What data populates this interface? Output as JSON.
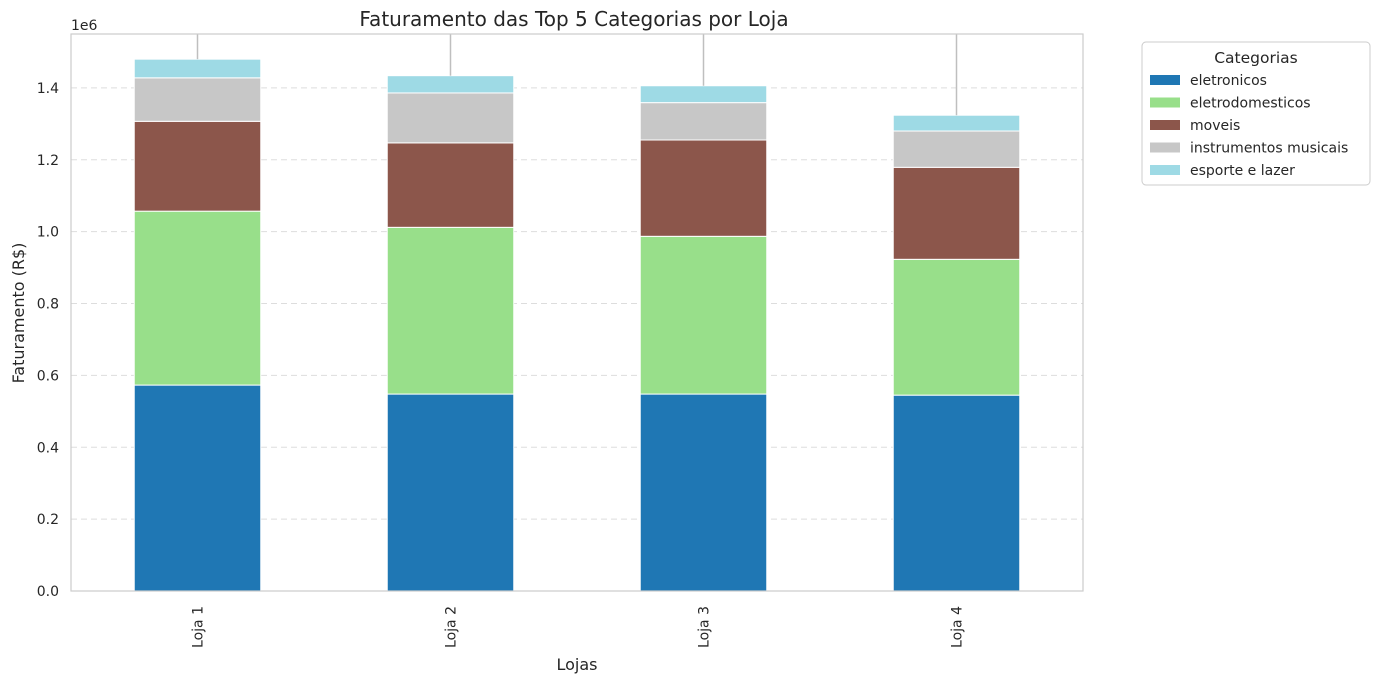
{
  "chart_data": {
    "type": "bar",
    "stacked": true,
    "title": "Faturamento das Top 5 Categorias por Loja",
    "xlabel": "Lojas",
    "ylabel": "Faturamento (R$)",
    "y_scale_label": "1e6",
    "categories": [
      "Loja 1",
      "Loja 2",
      "Loja 3",
      "Loja 4"
    ],
    "ylim": [
      0,
      1.55
    ],
    "yticks": [
      "0.0",
      "0.2",
      "0.4",
      "0.6",
      "0.8",
      "1.0",
      "1.2",
      "1.4"
    ],
    "grid": "y-dashed",
    "legend_title": "Categorias",
    "legend_position": "outside-right",
    "series": [
      {
        "name": "eletronicos",
        "color": "#1f77b4",
        "values": [
          0.573,
          0.548,
          0.548,
          0.545
        ]
      },
      {
        "name": "eletrodomesticos",
        "color": "#98df8a",
        "values": [
          0.484,
          0.464,
          0.439,
          0.378
        ]
      },
      {
        "name": "moveis",
        "color": "#8c564b",
        "values": [
          0.25,
          0.235,
          0.268,
          0.256
        ]
      },
      {
        "name": "instrumentos musicais",
        "color": "#c7c7c7",
        "values": [
          0.121,
          0.139,
          0.104,
          0.101
        ]
      },
      {
        "name": "esporte e lazer",
        "color": "#9edae5",
        "values": [
          0.052,
          0.048,
          0.047,
          0.044
        ]
      }
    ]
  }
}
